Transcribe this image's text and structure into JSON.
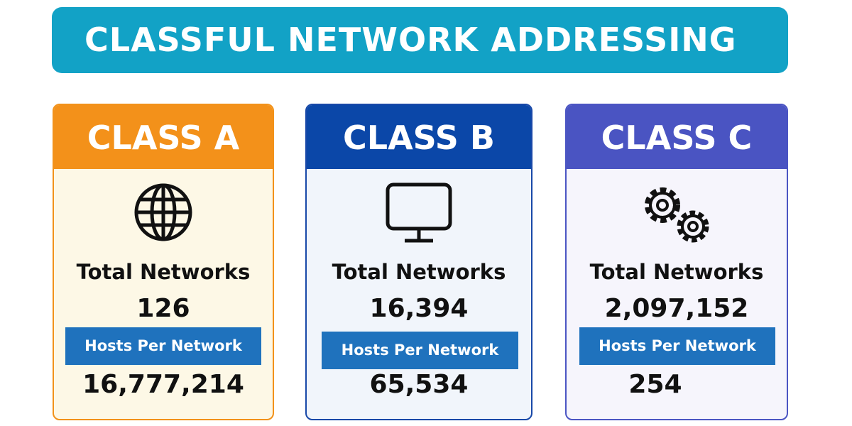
{
  "header": {
    "title": "CLASSFUL NETWORK ADDRESSING"
  },
  "cards": [
    {
      "name": "CLASS A",
      "networks_label": "Total Networks",
      "networks": "126",
      "hosts_label": "Hosts Per Network",
      "hosts": "16,777,214"
    },
    {
      "name": "CLASS B",
      "networks_label": "Total Networks",
      "networks": "16,394",
      "hosts_label": "Hosts Per Network",
      "hosts": "65,534"
    },
    {
      "name": "CLASS C",
      "networks_label": "Total Networks",
      "networks": "2,097,152",
      "hosts_label": "Hosts Per Network",
      "hosts": "254"
    }
  ]
}
